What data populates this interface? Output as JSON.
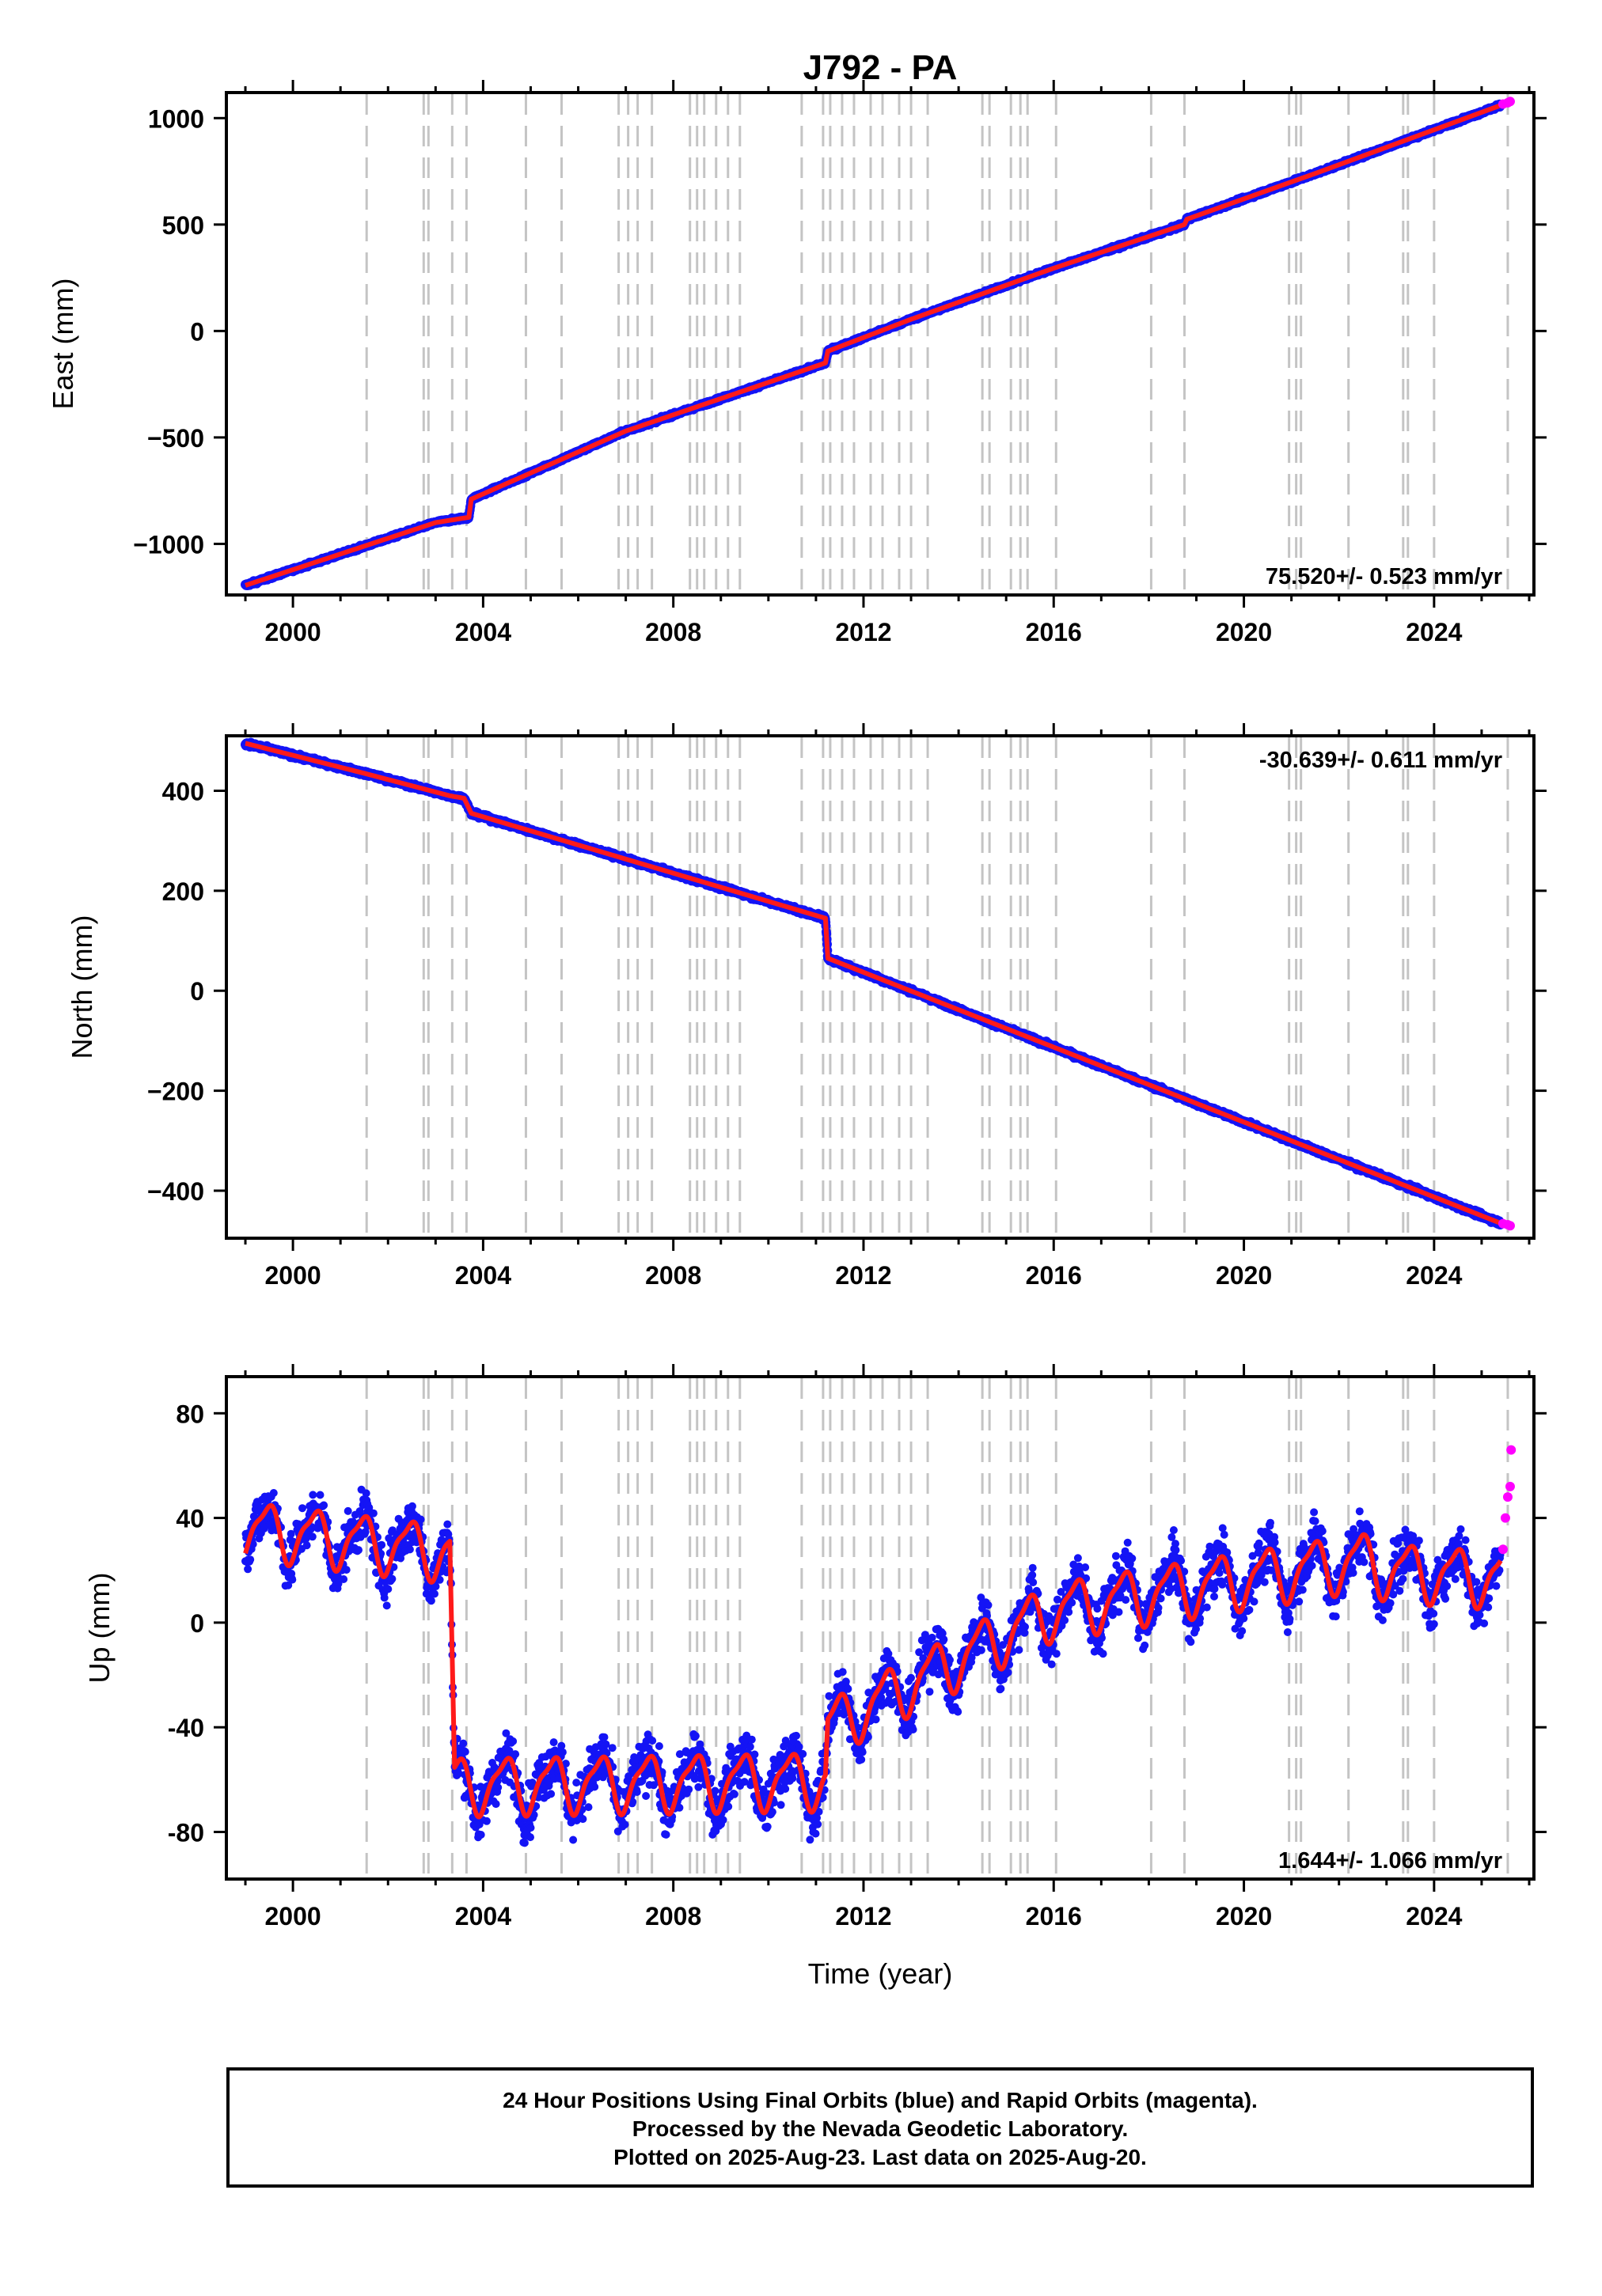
{
  "title": "J792 - PA",
  "colors": {
    "final": "#1414f5",
    "rapid": "#ff00ff",
    "model": "#ff1a1a",
    "events": "#c4c4c4",
    "frame": "#000000"
  },
  "chart_data": [
    {
      "type": "scatter",
      "component": "East",
      "ylabel": "East (mm)",
      "xlabel": "",
      "rate_label": "75.520+/- 0.523 mm/yr",
      "rate_position": "bottom-right",
      "xlim": [
        1998.6,
        2026.1
      ],
      "ylim": [
        -1240,
        1120
      ],
      "xticks": [
        2000,
        2004,
        2008,
        2012,
        2016,
        2020,
        2024
      ],
      "xtick_labels": [
        "2000",
        "2004",
        "2008",
        "2012",
        "2016",
        "2020",
        "2024"
      ],
      "yticks": [
        1000,
        500,
        0,
        -500,
        -1000
      ],
      "ytick_labels": [
        "1000",
        "500",
        "0",
        "−500",
        "−1000"
      ],
      "series": [
        {
          "role": "final",
          "x": [
            1999.0,
            2003.0,
            2003.7,
            2003.75,
            2007.0,
            2011.2,
            2011.25,
            2013.0,
            2016.0,
            2018.75,
            2018.8,
            2021.5,
            2025.4
          ],
          "y": [
            -1195,
            -900,
            -875,
            -790,
            -470,
            -150,
            -95,
            55,
            295,
            500,
            525,
            740,
            1060
          ]
        },
        {
          "role": "rapid",
          "x": [
            2025.45,
            2025.55,
            2025.6
          ],
          "y": [
            1066,
            1072,
            1078
          ]
        }
      ]
    },
    {
      "type": "scatter",
      "component": "North",
      "ylabel": "North (mm)",
      "xlabel": "",
      "rate_label": "-30.639+/- 0.611 mm/yr",
      "rate_position": "top-right",
      "xlim": [
        1998.6,
        2026.1
      ],
      "ylim": [
        -495,
        510
      ],
      "xticks": [
        2000,
        2004,
        2008,
        2012,
        2016,
        2020,
        2024
      ],
      "xtick_labels": [
        "2000",
        "2004",
        "2008",
        "2012",
        "2016",
        "2020",
        "2024"
      ],
      "yticks": [
        400,
        200,
        0,
        -200,
        -400
      ],
      "ytick_labels": [
        "400",
        "200",
        "0",
        "−200",
        "−400"
      ],
      "series": [
        {
          "role": "final",
          "x": [
            1999.0,
            2001.5,
            2003.3,
            2003.6,
            2003.75,
            2011.2,
            2011.25,
            2025.4
          ],
          "y": [
            495,
            435,
            390,
            385,
            355,
            145,
            65,
            -465
          ]
        },
        {
          "role": "rapid",
          "x": [
            2025.45,
            2025.55,
            2025.6
          ],
          "y": [
            -466,
            -468,
            -470
          ]
        }
      ]
    },
    {
      "type": "scatter",
      "component": "Up",
      "ylabel": "Up (mm)",
      "xlabel": "Time (year)",
      "rate_label": "1.644+/- 1.066 mm/yr",
      "rate_position": "bottom-right",
      "xlim": [
        1998.6,
        2026.1
      ],
      "ylim": [
        -98,
        94
      ],
      "xticks": [
        2000,
        2004,
        2008,
        2012,
        2016,
        2020,
        2024
      ],
      "xtick_labels": [
        "2000",
        "2004",
        "2008",
        "2012",
        "2016",
        "2020",
        "2024"
      ],
      "yticks": [
        80,
        40,
        0,
        -40,
        -80
      ],
      "ytick_labels": [
        "80",
        "40",
        "0",
        "-40",
        "-80"
      ],
      "series": [
        {
          "role": "final",
          "x": [
            1999.0,
            2003.3,
            2003.4,
            2011.2,
            2011.25,
            2016.0,
            2022.5,
            2023.0,
            2025.4
          ],
          "y": [
            36,
            27,
            -62,
            -60,
            -40,
            5,
            24,
            20,
            17
          ],
          "seasonal_amplitude_mm": 10
        },
        {
          "role": "rapid",
          "x": [
            2025.45,
            2025.5,
            2025.55,
            2025.6,
            2025.62
          ],
          "y": [
            28,
            40,
            48,
            52,
            66
          ]
        }
      ]
    }
  ],
  "event_years": [
    2001.55,
    2002.75,
    2002.85,
    2003.35,
    2003.65,
    2004.9,
    2005.65,
    2006.85,
    2007.05,
    2007.25,
    2007.55,
    2008.35,
    2008.5,
    2008.65,
    2008.9,
    2009.15,
    2009.4,
    2010.7,
    2011.15,
    2011.3,
    2011.55,
    2011.8,
    2012.15,
    2012.4,
    2012.75,
    2013.0,
    2013.35,
    2014.5,
    2014.65,
    2015.1,
    2015.3,
    2015.45,
    2016.05,
    2018.05,
    2018.75,
    2020.95,
    2021.1,
    2021.2,
    2022.2,
    2023.35,
    2023.45,
    2024.0,
    2025.55
  ],
  "footer": {
    "line1": "24 Hour Positions Using Final Orbits (blue) and Rapid Orbits (magenta).",
    "line2": "Processed by the Nevada Geodetic Laboratory.",
    "line3": "Plotted on 2025-Aug-23. Last data on 2025-Aug-20."
  }
}
